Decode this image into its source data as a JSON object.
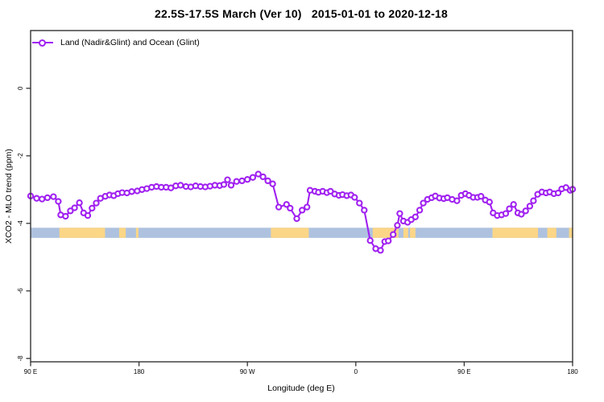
{
  "figure": {
    "background": "#ffffff",
    "title": "22.5S-17.5S March (Ver 10)   2015-01-01 to 2020-12-18"
  },
  "chart_data": {
    "type": "line",
    "title": "22.5S-17.5S March (Ver 10)   2015-01-01 to 2020-12-18",
    "xlabel": "Longitude (deg E)",
    "ylabel": "XCO2 - MLO trend (ppm)",
    "xlim": [
      90,
      540
    ],
    "ylim": [
      -8.1,
      1.71
    ],
    "grid": false,
    "axis_color": "#333333",
    "tick_label_size": 8,
    "xticks": [
      {
        "pos": 90,
        "label": "90 E"
      },
      {
        "pos": 180,
        "label": "180"
      },
      {
        "pos": 270,
        "label": "90 W"
      },
      {
        "pos": 360,
        "label": "0"
      },
      {
        "pos": 450,
        "label": "90 E"
      },
      {
        "pos": 540,
        "label": "180"
      }
    ],
    "yticks": [
      {
        "pos": 0,
        "label": "0"
      },
      {
        "pos": -2,
        "label": "-2"
      },
      {
        "pos": -4,
        "label": "-4"
      },
      {
        "pos": -6,
        "label": "-6"
      },
      {
        "pos": -8,
        "label": "-8"
      }
    ],
    "legend": {
      "position": "top-left",
      "entries": [
        {
          "label": "Land (Nadir&Glint) and Ocean (Glint)",
          "color": "#A020F0",
          "marker": "open-circle"
        }
      ]
    },
    "series": [
      {
        "name": "Land (Nadir&Glint) and Ocean (Glint)",
        "color": "#A020F0",
        "marker": "open-circle",
        "marker_radius": 3.1,
        "line_width": 2.1,
        "x": [
          90,
          95,
          99.5,
          104,
          109,
          113,
          115,
          119,
          123,
          126.5,
          130.5,
          134,
          137.5,
          141,
          144.5,
          148,
          152,
          155.5,
          159,
          162.5,
          166,
          170,
          174,
          178.5,
          182.5,
          186.5,
          190.5,
          194.5,
          198.5,
          202.5,
          206.5,
          210.5,
          214.5,
          219,
          223,
          227,
          231,
          235,
          239,
          243,
          247,
          250.5,
          253.5,
          256.5,
          261,
          265.5,
          270,
          274.5,
          279,
          283,
          287,
          291,
          296,
          302.5,
          305.5,
          311,
          315.5,
          319.5,
          322,
          326,
          329,
          332.5,
          336,
          339,
          342.5,
          346,
          349,
          352.5,
          356,
          359,
          363,
          367,
          372,
          376.5,
          380.5,
          384,
          387,
          391,
          394.5,
          396.5,
          399.5,
          403,
          406,
          409.5,
          413,
          416,
          419.5,
          423,
          426,
          429.5,
          433,
          436,
          440,
          444,
          447.5,
          451,
          454,
          457.5,
          461,
          464,
          467.5,
          471,
          474,
          477.5,
          481,
          484.5,
          487.5,
          491,
          494.5,
          497.5,
          501,
          504.5,
          507.5,
          511,
          514.5,
          518,
          521,
          524.5,
          528,
          531,
          534.5,
          538,
          540
        ],
        "y": [
          -3.19,
          -3.26,
          -3.28,
          -3.24,
          -3.21,
          -3.35,
          -3.75,
          -3.79,
          -3.63,
          -3.54,
          -3.39,
          -3.69,
          -3.77,
          -3.55,
          -3.4,
          -3.26,
          -3.2,
          -3.16,
          -3.18,
          -3.12,
          -3.09,
          -3.1,
          -3.06,
          -3.04,
          -3.0,
          -2.97,
          -2.93,
          -2.91,
          -2.93,
          -2.93,
          -2.95,
          -2.89,
          -2.87,
          -2.91,
          -2.92,
          -2.89,
          -2.91,
          -2.92,
          -2.9,
          -2.87,
          -2.88,
          -2.85,
          -2.71,
          -2.87,
          -2.76,
          -2.74,
          -2.7,
          -2.64,
          -2.54,
          -2.62,
          -2.74,
          -2.83,
          -3.52,
          -3.44,
          -3.55,
          -3.86,
          -3.61,
          -3.52,
          -3.02,
          -3.05,
          -3.08,
          -3.05,
          -3.09,
          -3.05,
          -3.13,
          -3.17,
          -3.15,
          -3.18,
          -3.16,
          -3.23,
          -3.4,
          -3.61,
          -4.51,
          -4.75,
          -4.8,
          -4.54,
          -4.52,
          -4.33,
          -4.06,
          -3.71,
          -3.93,
          -3.97,
          -3.89,
          -3.81,
          -3.61,
          -3.4,
          -3.29,
          -3.24,
          -3.19,
          -3.25,
          -3.27,
          -3.24,
          -3.29,
          -3.33,
          -3.17,
          -3.12,
          -3.17,
          -3.23,
          -3.23,
          -3.2,
          -3.31,
          -3.37,
          -3.69,
          -3.77,
          -3.75,
          -3.71,
          -3.57,
          -3.44,
          -3.69,
          -3.73,
          -3.63,
          -3.49,
          -3.33,
          -3.14,
          -3.07,
          -3.1,
          -3.07,
          -3.12,
          -3.1,
          -2.98,
          -2.94,
          -3.02,
          -2.99
        ]
      }
    ],
    "map_strip": {
      "y_top": -4.13,
      "y_bottom": -4.43,
      "ocean_color": "#AEC2DF",
      "land_color": "#FBD687",
      "land_segments_deg_e": [
        [
          113.9,
          151.8
        ],
        [
          163.5,
          169.0
        ],
        [
          177.5,
          179.5
        ],
        [
          289.5,
          321.0
        ],
        [
          374.0,
          395.5
        ],
        [
          399.5,
          403.5
        ],
        [
          405.0,
          409.5
        ],
        [
          473.5,
          511.3
        ],
        [
          519.0,
          526.5
        ],
        [
          537.0,
          540.0
        ]
      ]
    }
  }
}
